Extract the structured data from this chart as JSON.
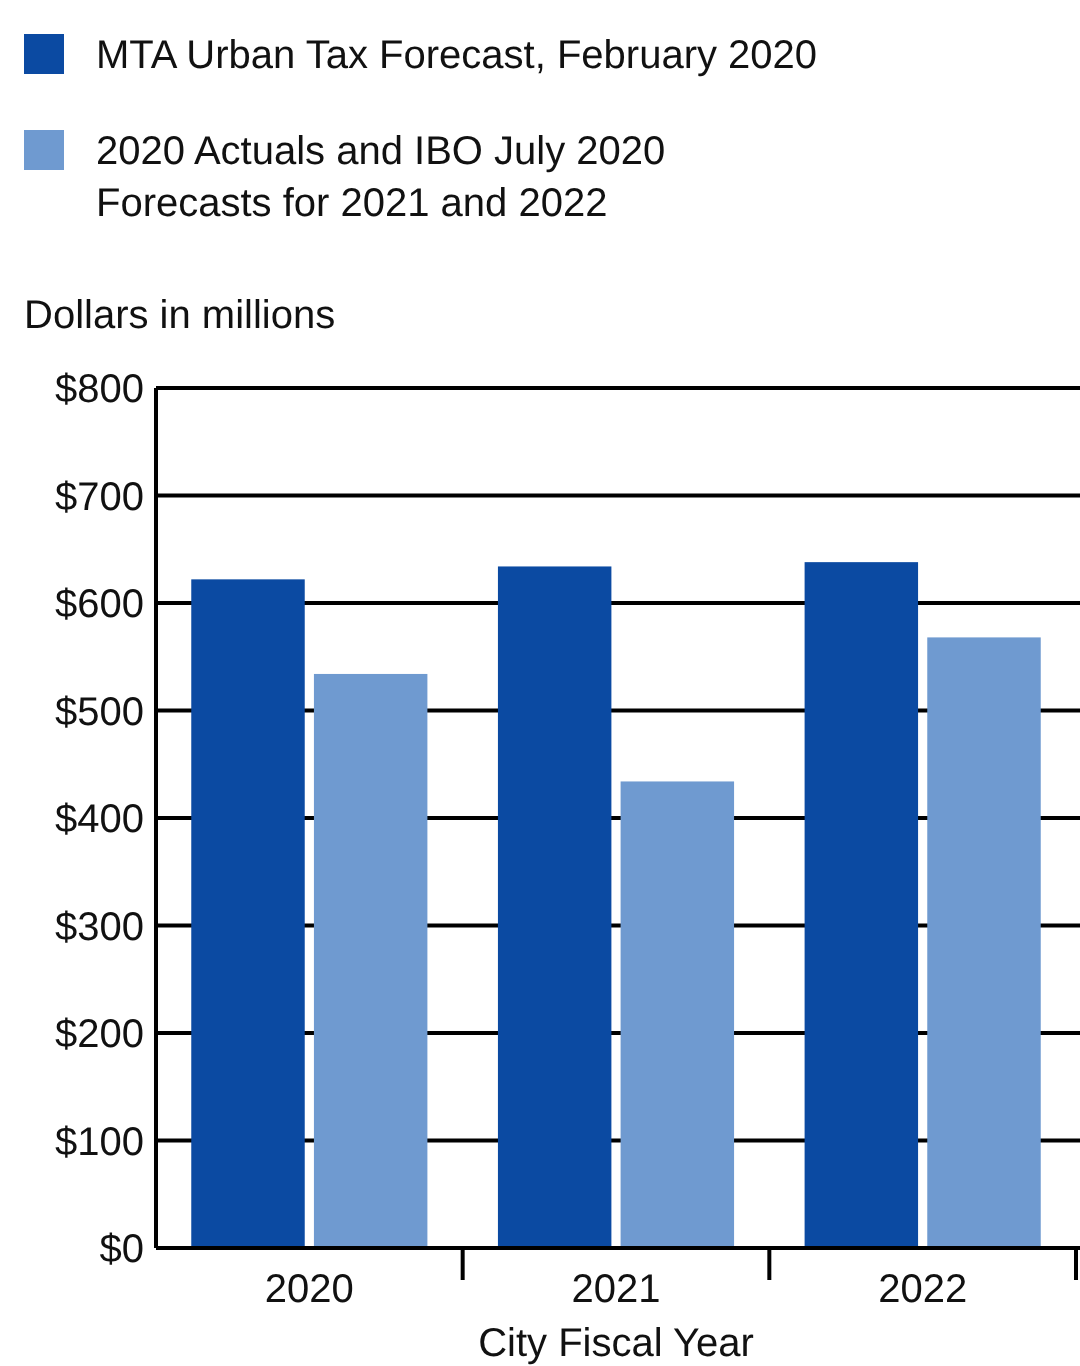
{
  "chart_data": {
    "type": "bar",
    "xlabel": "City Fiscal Year",
    "ylabel": "Dollars in millions",
    "categories": [
      "2020",
      "2021",
      "2022"
    ],
    "series": [
      {
        "name": "MTA Urban Tax Forecast, February 2020",
        "color": "#0b4aa2",
        "values": [
          622,
          634,
          638
        ]
      },
      {
        "name": "2020 Actuals and IBO July 2020 Forecasts for 2021 and 2022",
        "color": "#6f9ad0",
        "values": [
          534,
          434,
          568
        ]
      }
    ],
    "ylim": [
      0,
      800
    ],
    "yticks": [
      {
        "value": 0,
        "label": "$0"
      },
      {
        "value": 100,
        "label": "$100"
      },
      {
        "value": 200,
        "label": "$200"
      },
      {
        "value": 300,
        "label": "$300"
      },
      {
        "value": 400,
        "label": "$400"
      },
      {
        "value": 500,
        "label": "$500"
      },
      {
        "value": 600,
        "label": "$600"
      },
      {
        "value": 700,
        "label": "$700"
      },
      {
        "value": 800,
        "label": "$800"
      }
    ],
    "grid": "y",
    "legend": "top left"
  }
}
